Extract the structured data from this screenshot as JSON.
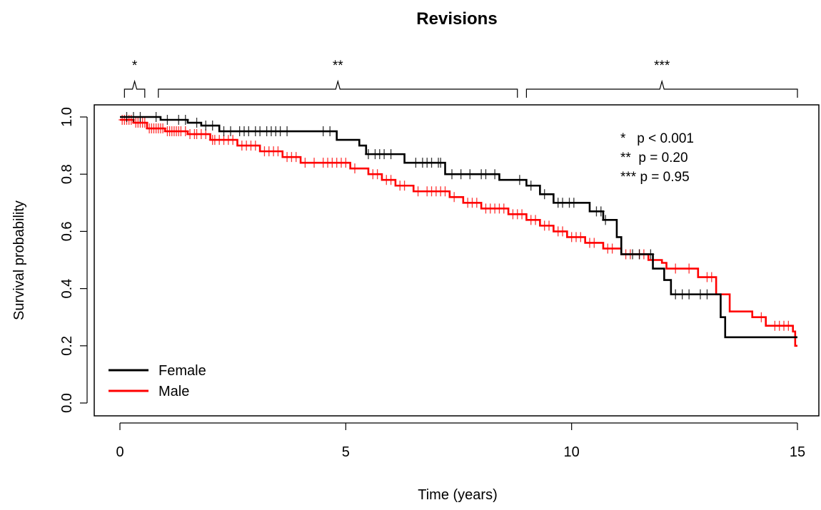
{
  "chart_data": {
    "type": "line",
    "title": "Revisions",
    "xlabel": "Time (years)",
    "ylabel": "Survival probability",
    "xlim": [
      0,
      15
    ],
    "ylim": [
      0,
      1
    ],
    "xticks": [
      "0",
      "5",
      "10",
      "15"
    ],
    "yticks": [
      "0.0",
      "0.2",
      "0.4",
      "0.6",
      "0.8",
      "1.0"
    ],
    "grid": false,
    "legend_position": "bottom-left",
    "legend": [
      {
        "label": "Female",
        "color": "#000000"
      },
      {
        "label": "Male",
        "color": "#ff0000"
      }
    ],
    "series": [
      {
        "name": "Female",
        "color": "#000000",
        "steps": [
          [
            0,
            1.0
          ],
          [
            0.6,
            1.0
          ],
          [
            0.9,
            0.99
          ],
          [
            1.5,
            0.98
          ],
          [
            1.8,
            0.97
          ],
          [
            2.2,
            0.95
          ],
          [
            4.8,
            0.92
          ],
          [
            5.3,
            0.9
          ],
          [
            5.45,
            0.87
          ],
          [
            6.3,
            0.84
          ],
          [
            7.2,
            0.8
          ],
          [
            8.4,
            0.78
          ],
          [
            9.0,
            0.76
          ],
          [
            9.3,
            0.73
          ],
          [
            9.6,
            0.7
          ],
          [
            10.4,
            0.67
          ],
          [
            10.7,
            0.64
          ],
          [
            11.0,
            0.58
          ],
          [
            11.1,
            0.52
          ],
          [
            11.8,
            0.47
          ],
          [
            12.05,
            0.43
          ],
          [
            12.2,
            0.38
          ],
          [
            13.3,
            0.3
          ],
          [
            13.4,
            0.23
          ],
          [
            15.0,
            0.23
          ]
        ],
        "censor_x": [
          0.15,
          0.3,
          0.45,
          0.8,
          1.05,
          1.3,
          1.45,
          1.7,
          1.9,
          2.05,
          2.3,
          2.45,
          2.65,
          2.75,
          2.85,
          3.0,
          3.1,
          3.25,
          3.35,
          3.45,
          3.55,
          3.7,
          4.5,
          4.65,
          5.5,
          5.65,
          5.75,
          5.85,
          6.0,
          6.55,
          6.7,
          6.8,
          6.9,
          7.05,
          7.1,
          7.35,
          7.55,
          7.75,
          8.0,
          8.1,
          8.3,
          8.85,
          9.1,
          9.4,
          9.7,
          9.8,
          9.95,
          10.05,
          10.55,
          10.65,
          10.75,
          11.35,
          11.5,
          11.75,
          12.3,
          12.45,
          12.6,
          12.85,
          13.0
        ]
      },
      {
        "name": "Male",
        "color": "#ff0000",
        "steps": [
          [
            0,
            0.99
          ],
          [
            0.3,
            0.98
          ],
          [
            0.6,
            0.96
          ],
          [
            1.0,
            0.95
          ],
          [
            1.5,
            0.94
          ],
          [
            2.0,
            0.92
          ],
          [
            2.6,
            0.9
          ],
          [
            3.1,
            0.88
          ],
          [
            3.6,
            0.86
          ],
          [
            4.0,
            0.84
          ],
          [
            5.1,
            0.82
          ],
          [
            5.5,
            0.8
          ],
          [
            5.8,
            0.78
          ],
          [
            6.1,
            0.76
          ],
          [
            6.5,
            0.74
          ],
          [
            7.3,
            0.72
          ],
          [
            7.6,
            0.7
          ],
          [
            8.0,
            0.68
          ],
          [
            8.6,
            0.66
          ],
          [
            9.0,
            0.64
          ],
          [
            9.3,
            0.62
          ],
          [
            9.6,
            0.6
          ],
          [
            9.9,
            0.58
          ],
          [
            10.3,
            0.56
          ],
          [
            10.7,
            0.54
          ],
          [
            11.1,
            0.52
          ],
          [
            11.7,
            0.5
          ],
          [
            12.0,
            0.49
          ],
          [
            12.1,
            0.47
          ],
          [
            12.8,
            0.44
          ],
          [
            13.2,
            0.38
          ],
          [
            13.5,
            0.32
          ],
          [
            14.0,
            0.3
          ],
          [
            14.3,
            0.27
          ],
          [
            14.9,
            0.25
          ],
          [
            14.95,
            0.2
          ],
          [
            15.0,
            0.2
          ]
        ],
        "censor_x": [
          0.05,
          0.1,
          0.15,
          0.2,
          0.25,
          0.35,
          0.4,
          0.45,
          0.5,
          0.55,
          0.65,
          0.7,
          0.75,
          0.8,
          0.85,
          0.9,
          0.95,
          1.05,
          1.1,
          1.15,
          1.2,
          1.25,
          1.3,
          1.35,
          1.45,
          1.55,
          1.65,
          1.7,
          1.8,
          1.9,
          2.05,
          2.1,
          2.2,
          2.3,
          2.4,
          2.5,
          2.7,
          2.8,
          2.9,
          3.0,
          3.2,
          3.3,
          3.4,
          3.5,
          3.7,
          3.8,
          3.9,
          4.1,
          4.3,
          4.5,
          4.6,
          4.7,
          4.8,
          4.9,
          5.0,
          5.2,
          5.6,
          5.7,
          5.9,
          6.0,
          6.2,
          6.3,
          6.6,
          6.8,
          6.9,
          7.0,
          7.1,
          7.2,
          7.4,
          7.7,
          7.8,
          7.9,
          8.1,
          8.2,
          8.3,
          8.4,
          8.5,
          8.7,
          8.8,
          8.9,
          9.1,
          9.2,
          9.4,
          9.5,
          9.7,
          9.8,
          10.0,
          10.1,
          10.2,
          10.4,
          10.5,
          10.8,
          10.9,
          11.2,
          11.3,
          11.5,
          11.6,
          12.3,
          12.6,
          13.0,
          13.1,
          14.2,
          14.5,
          14.6,
          14.7,
          14.8
        ]
      }
    ],
    "brackets": [
      {
        "label": "*",
        "range": [
          0.1,
          0.55
        ]
      },
      {
        "label": "**",
        "range": [
          0.85,
          8.8
        ]
      },
      {
        "label": "***",
        "range": [
          9.0,
          15.0
        ]
      }
    ],
    "annotation": {
      "line1": "*   p < 0.001",
      "line2": "**  p = 0.20",
      "line3": "*** p = 0.95"
    }
  }
}
